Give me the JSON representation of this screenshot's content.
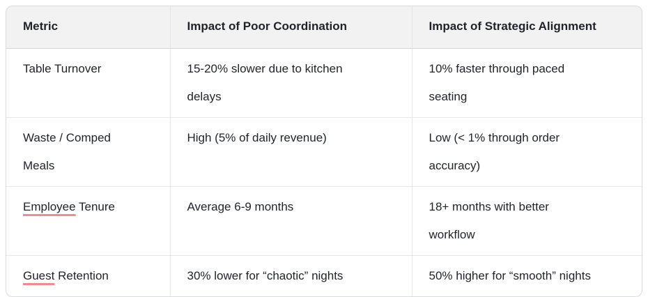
{
  "table": {
    "columns": [
      {
        "label": "Metric"
      },
      {
        "label": "Impact of Poor Coordination"
      },
      {
        "label": "Impact of Strategic Alignment"
      }
    ],
    "rows": [
      {
        "metric": "Table Turnover",
        "poor": "15-20% slower due to kitchen\ndelays",
        "aligned": "10% faster through paced\nseating"
      },
      {
        "metric": "Waste / Comped\nMeals",
        "poor": "High (5% of daily revenue)",
        "aligned": "Low (< 1% through order\naccuracy)"
      },
      {
        "metric_underlined": "Employee",
        "metric_rest": " Tenure",
        "poor": "Average 6-9 months",
        "aligned": "18+ months with better\nworkflow"
      },
      {
        "metric_underlined": "Guest",
        "metric_rest": " Retention",
        "poor": "30% lower for “chaotic” nights",
        "aligned": "50% higher for “smooth” nights"
      }
    ],
    "colors": {
      "header_background": "#f2f2f3",
      "outer_border": "#d8dadd",
      "inner_border": "#e3e4e6",
      "text": "#1f2329",
      "spellcheck_underline": "#f28b8b"
    }
  }
}
